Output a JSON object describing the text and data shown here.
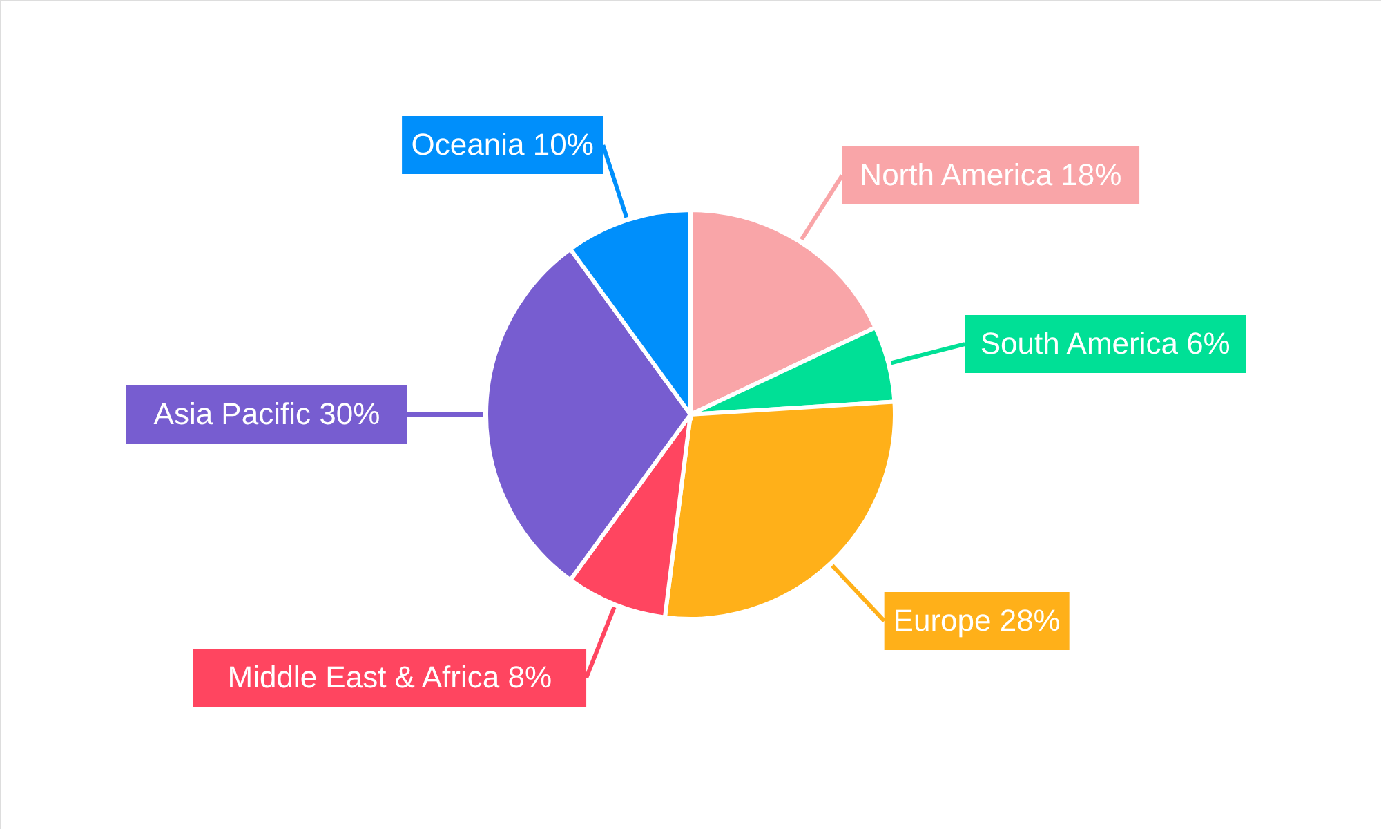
{
  "chart_data": {
    "type": "pie",
    "categories": [
      "North America",
      "South America",
      "Europe",
      "Middle East & Africa",
      "Asia Pacific",
      "Oceania"
    ],
    "values": [
      18,
      6,
      28,
      8,
      30,
      10
    ],
    "value_labels": [
      "18%",
      "6%",
      "28%",
      "8%",
      "30%",
      "10%"
    ],
    "colors": [
      "#f9a5a8",
      "#00e096",
      "#ffb019",
      "#ff4560",
      "#775dd0",
      "#008ffb"
    ]
  }
}
